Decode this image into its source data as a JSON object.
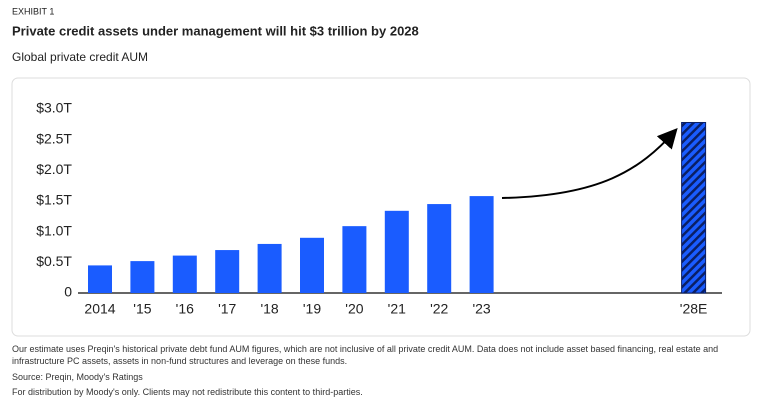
{
  "chart_data": {
    "type": "bar",
    "exhibit": "EXHIBIT 1",
    "title": "Private credit assets under management will hit $3 trillion by 2028",
    "subtitle": "Global private credit AUM",
    "categories": [
      "2014",
      "'15",
      "'16",
      "'17",
      "'18",
      "'19",
      "'20",
      "'21",
      "'22",
      "'23",
      "'28E"
    ],
    "values": [
      0.45,
      0.52,
      0.61,
      0.7,
      0.8,
      0.9,
      1.09,
      1.34,
      1.45,
      1.58,
      2.78
    ],
    "color": "#1a5cff",
    "ylim": [
      0,
      3.0
    ],
    "yticks": [
      0,
      {
        "value": 0.5,
        "label": "$0.5T"
      },
      {
        "value": 1.0,
        "label": "$1.0T"
      },
      {
        "value": 1.5,
        "label": "$1.5T"
      },
      {
        "value": 2.0,
        "label": "$2.0T"
      },
      {
        "value": 2.5,
        "label": "$2.5T"
      },
      {
        "value": 3.0,
        "label": "$3.0T"
      }
    ],
    "grid": false,
    "note": "Our estimate uses Preqin's historical private debt fund AUM figures, which are not inclusive of all private credit AUM. Data does not include asset based financing, real estate and infrastructure PC assets, assets in non-fund structures and leverage on these funds.",
    "source": "Source: Preqin, Moody's Ratings",
    "distribution": "For distribution by Moody's only. Clients may not redistribute this content to third-parties."
  }
}
